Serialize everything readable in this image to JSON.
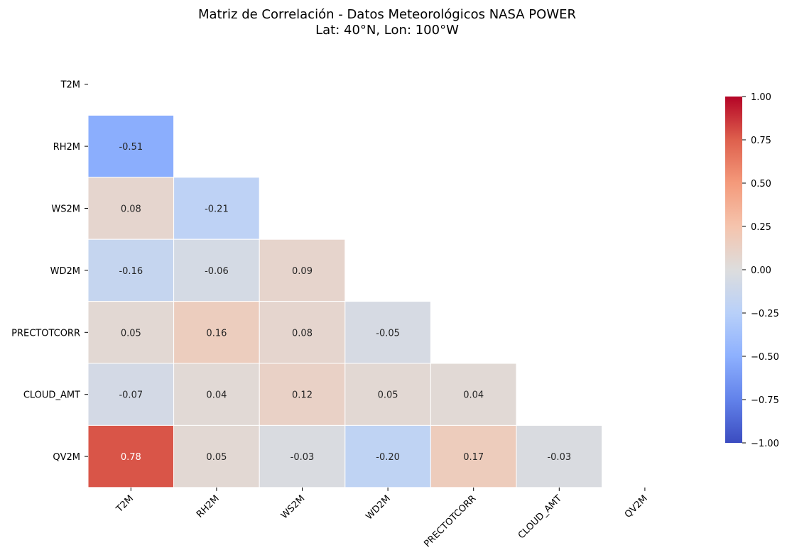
{
  "chart_data": {
    "type": "heatmap",
    "title": "Matriz de Correlación - Datos Meteorológicos NASA POWER",
    "subtitle": "Lat: 40°N, Lon: 100°W",
    "variables": [
      "T2M",
      "RH2M",
      "WS2M",
      "WD2M",
      "PRECTOTCORR",
      "CLOUD_AMT",
      "QV2M"
    ],
    "mask": "upper-triangle-including-diagonal",
    "values": [
      [
        null,
        null,
        null,
        null,
        null,
        null,
        null
      ],
      [
        -0.51,
        null,
        null,
        null,
        null,
        null,
        null
      ],
      [
        0.08,
        -0.21,
        null,
        null,
        null,
        null,
        null
      ],
      [
        -0.16,
        -0.06,
        0.09,
        null,
        null,
        null,
        null
      ],
      [
        0.05,
        0.16,
        0.08,
        -0.05,
        null,
        null,
        null
      ],
      [
        -0.07,
        0.04,
        0.12,
        0.05,
        0.04,
        null,
        null
      ],
      [
        0.78,
        0.05,
        -0.03,
        -0.2,
        0.17,
        -0.03,
        null
      ]
    ],
    "colormap": "coolwarm",
    "vmin": -1.0,
    "vmax": 1.0,
    "colorbar_ticks": [
      "1.00",
      "0.75",
      "0.50",
      "0.25",
      "0.00",
      "−0.25",
      "−0.50",
      "−0.75",
      "−1.00"
    ],
    "colorbar_tick_values": [
      1.0,
      0.75,
      0.5,
      0.25,
      0.0,
      -0.25,
      -0.5,
      -0.75,
      -1.0
    ]
  }
}
